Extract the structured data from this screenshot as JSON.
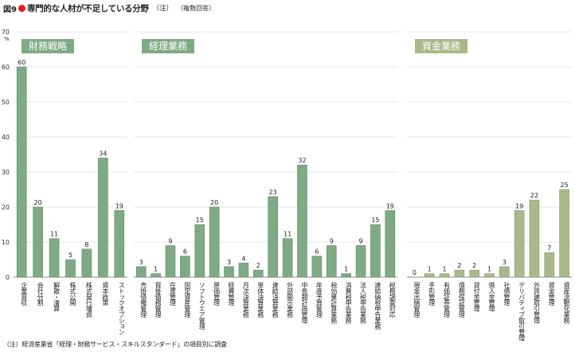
{
  "figure": {
    "number": "図9",
    "title": "専門的な人材が不足している分野",
    "note": "（注）",
    "subtitle": "（複数回答）",
    "footnote": "（注）経済産業省「経理・財務サービス・スキルスタンダード」の項目別に調査"
  },
  "colors": {
    "accent": "#e0201b",
    "bar_green": "#7faa86",
    "bar_green_edge": "#5f8a67",
    "bar_olive": "#a9b98c",
    "bar_olive_edge": "#889a6c",
    "header_green": "#7faa86",
    "header_olive": "#a9b98c",
    "grid": "#cfcfcf",
    "axis": "#888888"
  },
  "chart_data": {
    "type": "bar",
    "unit": "%",
    "ylim": [
      0,
      70
    ],
    "yticks": [
      0,
      10,
      20,
      30,
      40,
      50,
      60,
      70
    ],
    "grid": true,
    "groups": [
      {
        "label": "財務戦略",
        "style": "green",
        "categories": [
          "企業買収",
          "会社分割",
          "解散・清算",
          "株式公開",
          "株式発行増資",
          "資本政策",
          "ストックオプション"
        ],
        "values": [
          60,
          20,
          11,
          5,
          8,
          34,
          19
        ]
      },
      {
        "label": "経理業務",
        "style": "green",
        "categories": [
          "売掛債権管理",
          "買掛債務管理",
          "在庫管理",
          "固定資産管理",
          "ソフトウエア管理",
          "原価管理",
          "経費管理",
          "月次決算業務",
          "単体決算業務",
          "連結決算業務",
          "外部開示業務",
          "中長期計画管理",
          "年度予算管理",
          "税効果計算業務",
          "消費税申告業務",
          "法人税申告業務",
          "連結納税申告業務",
          "税務調査対応"
        ],
        "values": [
          3,
          1,
          9,
          6,
          15,
          20,
          3,
          4,
          2,
          23,
          11,
          32,
          6,
          9,
          1,
          9,
          15,
          19
        ]
      },
      {
        "label": "資金業務",
        "style": "olive",
        "categories": [
          "現金出納管理",
          "手形管理",
          "有価証券管理",
          "債務保証管理",
          "貸付金管理",
          "借入金管理",
          "社債管理",
          "デリバティブ取引管理",
          "外貨建取引管理",
          "資金管理",
          "資産流動化業務"
        ],
        "values": [
          0,
          1,
          1,
          2,
          2,
          1,
          3,
          19,
          22,
          7,
          25
        ]
      }
    ]
  }
}
